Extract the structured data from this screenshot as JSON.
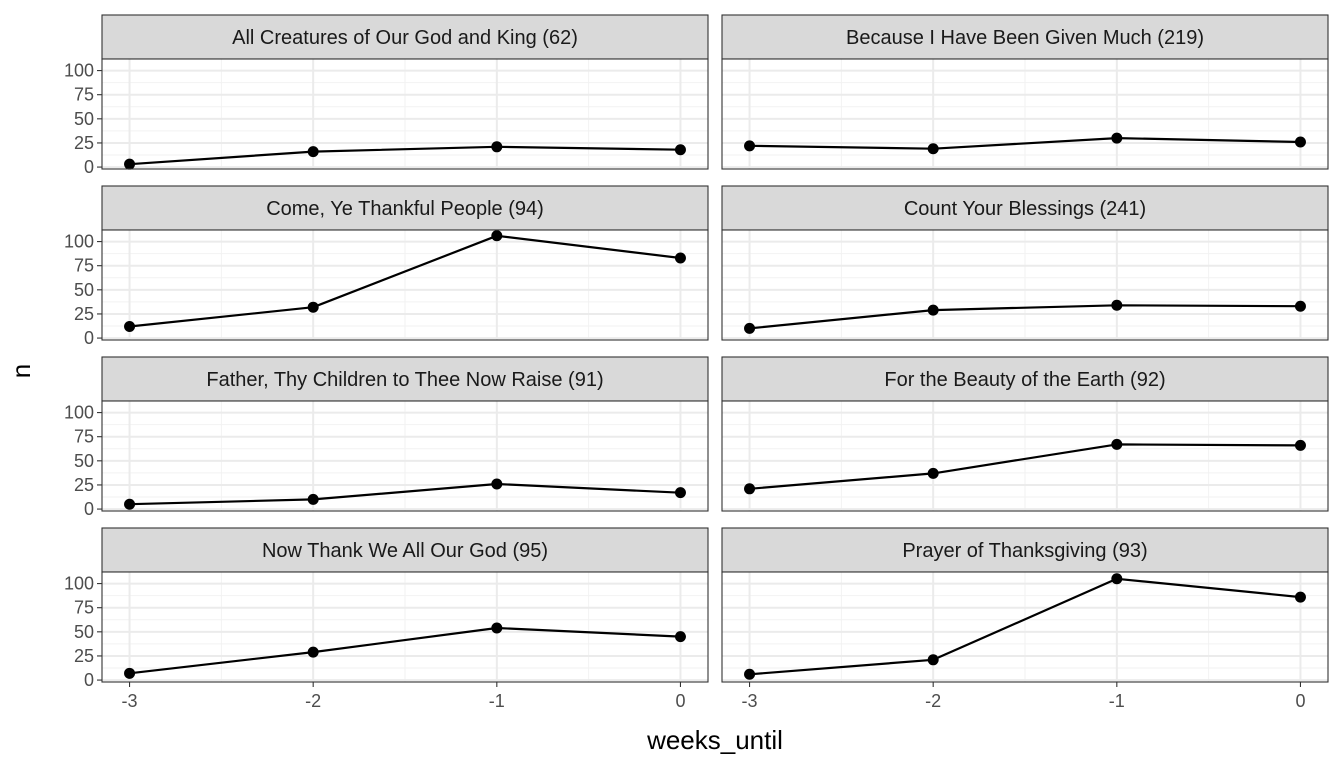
{
  "chart_data": {
    "type": "line",
    "layout": "facet-grid",
    "xlabel": "weeks_until",
    "ylabel": "n",
    "x": [
      -3,
      -2,
      -1,
      0
    ],
    "x_ticks": [
      -3,
      -2,
      -1,
      0
    ],
    "xlim": [
      -3.15,
      0.15
    ],
    "y_ticks": [
      0,
      25,
      50,
      75,
      100
    ],
    "ylim": [
      -2,
      112
    ],
    "grid": true,
    "theme": "bw",
    "line_color": "#000000",
    "strip_fill": "#d9d9d9",
    "panels": [
      {
        "title": "All Creatures of Our God and King (62)",
        "values": [
          3,
          16,
          21,
          18
        ]
      },
      {
        "title": "Because I Have Been Given Much (219)",
        "values": [
          22,
          19,
          30,
          26
        ]
      },
      {
        "title": "Come, Ye Thankful People (94)",
        "values": [
          12,
          32,
          106,
          83
        ]
      },
      {
        "title": "Count Your Blessings (241)",
        "values": [
          10,
          29,
          34,
          33
        ]
      },
      {
        "title": "Father, Thy Children to Thee Now Raise (91)",
        "values": [
          5,
          10,
          26,
          17
        ]
      },
      {
        "title": "For the Beauty of the Earth (92)",
        "values": [
          21,
          37,
          67,
          66
        ]
      },
      {
        "title": "Now Thank We All Our God (95)",
        "values": [
          7,
          29,
          54,
          45
        ]
      },
      {
        "title": "Prayer of Thanksgiving (93)",
        "values": [
          6,
          21,
          105,
          86
        ]
      }
    ]
  }
}
